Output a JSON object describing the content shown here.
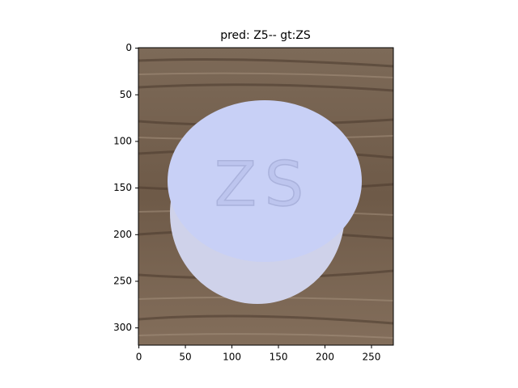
{
  "chart_data": {
    "type": "image",
    "title": "pred: Z5-- gt:ZS",
    "embossed_text": "ZS",
    "xlim": [
      -0.5,
      273.5
    ],
    "ylim": [
      318.5,
      -0.5
    ],
    "xticks": [
      0,
      50,
      100,
      150,
      200,
      250
    ],
    "yticks": [
      0,
      50,
      100,
      150,
      200,
      250,
      300
    ]
  }
}
